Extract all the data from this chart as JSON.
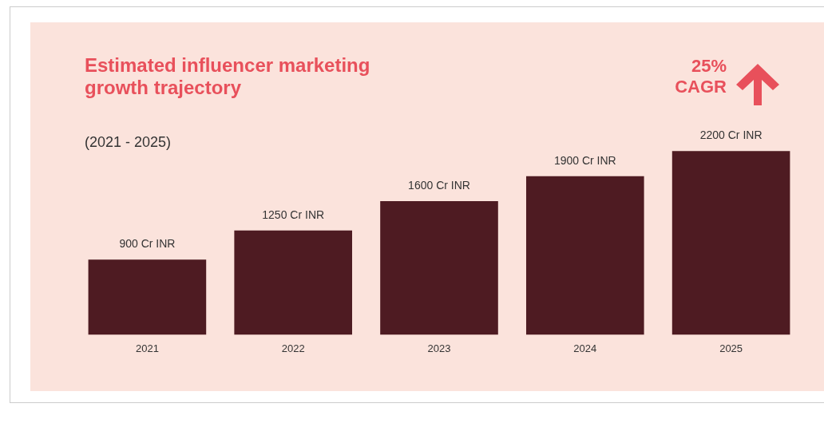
{
  "chart_data": {
    "type": "bar",
    "title": "Estimated influencer marketing growth trajectory",
    "subtitle": "(2021 - 2025)",
    "annotations": [
      "25% CAGR"
    ],
    "categories": [
      "2021",
      "2022",
      "2023",
      "2024",
      "2025"
    ],
    "values": [
      900,
      1250,
      1600,
      1900,
      2200
    ],
    "color": "#4e1b22",
    "value_labels": [
      "900 Cr INR",
      "1250 Cr INR",
      "1600 Cr INR",
      "1900 Cr INR",
      "2200 Cr INR"
    ],
    "grid": false,
    "legend": false
  }
}
